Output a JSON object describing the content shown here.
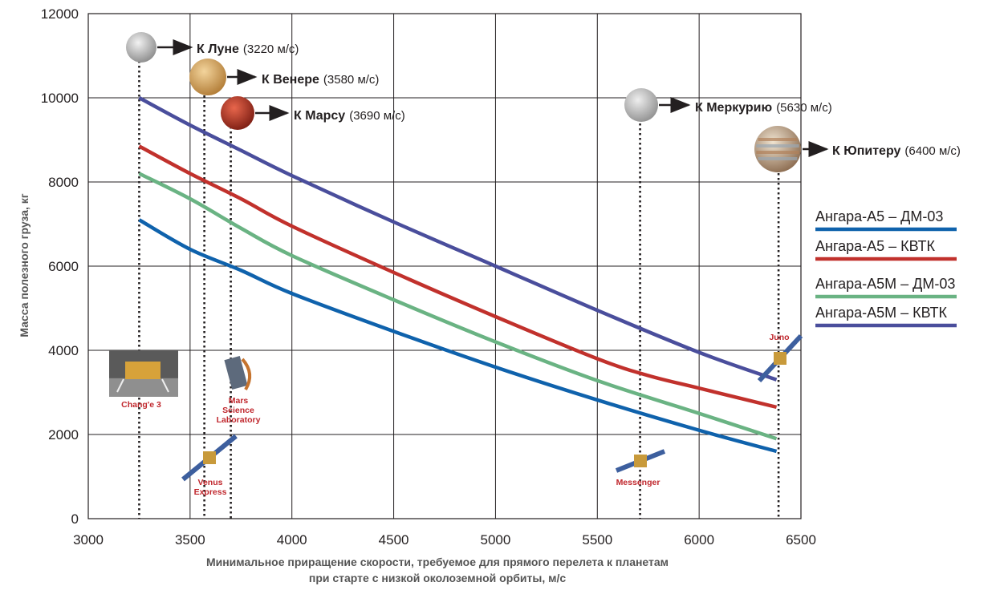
{
  "chart_data": {
    "type": "line",
    "xlabel": [
      "Минимальное приращение скорости, требуемое для прямого перелета к планетам",
      "при старте с низкой околоземной орбиты, м/с"
    ],
    "ylabel": "Масса полезного груза, кг",
    "xlim": [
      3000,
      6500
    ],
    "ylim": [
      0,
      12000
    ],
    "xticks": [
      3000,
      3500,
      4000,
      4500,
      5000,
      5500,
      6000,
      6500
    ],
    "yticks": [
      0,
      2000,
      4000,
      6000,
      8000,
      10000,
      12000
    ],
    "grid": true,
    "legend_position": "right",
    "series": [
      {
        "name": "Ангара-А5 – ДМ-03",
        "color": "#0f62ac",
        "points": [
          [
            3250,
            7100
          ],
          [
            3500,
            6400
          ],
          [
            3750,
            5900
          ],
          [
            4000,
            5350
          ],
          [
            4500,
            4450
          ],
          [
            5000,
            3600
          ],
          [
            5500,
            2820
          ],
          [
            6000,
            2100
          ],
          [
            6380,
            1600
          ]
        ]
      },
      {
        "name": "Ангара-А5 – КВТК",
        "color": "#c1312c",
        "points": [
          [
            3250,
            8850
          ],
          [
            3500,
            8200
          ],
          [
            3750,
            7600
          ],
          [
            4000,
            6950
          ],
          [
            4500,
            5850
          ],
          [
            5000,
            4800
          ],
          [
            5500,
            3800
          ],
          [
            5750,
            3400
          ],
          [
            6000,
            3100
          ],
          [
            6380,
            2650
          ]
        ]
      },
      {
        "name": "Ангара-А5М – ДМ-03",
        "color": "#6ab383",
        "points": [
          [
            3250,
            8200
          ],
          [
            3500,
            7600
          ],
          [
            3750,
            6900
          ],
          [
            4000,
            6250
          ],
          [
            4500,
            5200
          ],
          [
            5000,
            4200
          ],
          [
            5500,
            3280
          ],
          [
            6000,
            2500
          ],
          [
            6380,
            1900
          ]
        ]
      },
      {
        "name": "Ангара-А5М – КВТК",
        "color": "#4a4e9c",
        "points": [
          [
            3250,
            10000
          ],
          [
            3500,
            9350
          ],
          [
            3750,
            8750
          ],
          [
            4000,
            8150
          ],
          [
            4500,
            7050
          ],
          [
            5000,
            6000
          ],
          [
            5500,
            4950
          ],
          [
            6000,
            3950
          ],
          [
            6380,
            3300
          ]
        ]
      }
    ],
    "destinations": [
      {
        "name": "К Луне",
        "dv": "(3220 м/с)",
        "x": 3250,
        "body_color": "#c8c8c8",
        "body": "moon-icon"
      },
      {
        "name": "К Венере",
        "dv": "(3580 м/с)",
        "x": 3570,
        "body_color": "#d9a45c",
        "body": "venus-icon"
      },
      {
        "name": "К Марсу",
        "dv": "(3690 м/с)",
        "x": 3700,
        "body_color": "#c0392b",
        "body": "mars-icon"
      },
      {
        "name": "К Меркурию",
        "dv": "(5630 м/с)",
        "x": 5710,
        "body_color": "#b9b9b9",
        "body": "mercury-icon"
      },
      {
        "name": "К Юпитеру",
        "dv": "(6400 м/с)",
        "x": 6390,
        "body_color": "#c9a27a",
        "body": "jupiter-icon"
      }
    ],
    "spacecraft": [
      {
        "label": [
          "Chang'e 3"
        ],
        "icon": "lander-icon"
      },
      {
        "label": [
          "Venus",
          "Express"
        ],
        "icon": "spacecraft-icon"
      },
      {
        "label": [
          "Mars",
          "Science",
          "Laboratory"
        ],
        "icon": "capsule-icon"
      },
      {
        "label": [
          "Messenger"
        ],
        "icon": "spacecraft-icon"
      },
      {
        "label": [
          "Juno"
        ],
        "icon": "spacecraft-icon"
      }
    ]
  }
}
